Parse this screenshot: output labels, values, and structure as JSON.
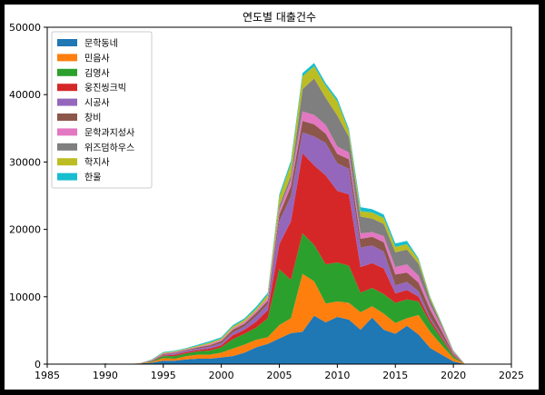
{
  "chart_data": {
    "type": "area",
    "title": "연도별 대출건수",
    "xlabel": "",
    "ylabel": "",
    "xlim": [
      1985,
      2025
    ],
    "ylim": [
      0,
      50000
    ],
    "xticks": [
      1985,
      1990,
      1995,
      2000,
      2005,
      2010,
      2015,
      2020,
      2025
    ],
    "yticks": [
      0,
      10000,
      20000,
      30000,
      40000,
      50000
    ],
    "legend_position": "top-left",
    "grid": false,
    "x": [
      1988,
      1989,
      1990,
      1991,
      1992,
      1993,
      1994,
      1995,
      1996,
      1997,
      1998,
      1999,
      2000,
      2001,
      2002,
      2003,
      2004,
      2005,
      2006,
      2007,
      2008,
      2009,
      2010,
      2011,
      2012,
      2013,
      2014,
      2015,
      2016,
      2017,
      2018,
      2019,
      2020,
      2021
    ],
    "series": [
      {
        "name": "문학동네",
        "color": "#1f77b4",
        "values": [
          0,
          0,
          100,
          0,
          0,
          100,
          200,
          500,
          500,
          700,
          800,
          800,
          1000,
          1200,
          1700,
          2500,
          3000,
          3800,
          4600,
          4800,
          7200,
          6200,
          7000,
          6600,
          5100,
          6900,
          5100,
          4500,
          5700,
          4400,
          2400,
          1400,
          400,
          0
        ]
      },
      {
        "name": "민음사",
        "color": "#ff7f0e",
        "values": [
          0,
          0,
          0,
          0,
          0,
          50,
          100,
          400,
          300,
          500,
          600,
          600,
          700,
          1100,
          1200,
          1100,
          1000,
          2000,
          2200,
          8600,
          5100,
          2800,
          2300,
          2500,
          2600,
          1700,
          2400,
          1600,
          1100,
          2900,
          2400,
          1400,
          500,
          0
        ]
      },
      {
        "name": "김영사",
        "color": "#2ca02c",
        "values": [
          0,
          0,
          0,
          0,
          0,
          0,
          100,
          300,
          400,
          400,
          500,
          600,
          800,
          1400,
          1600,
          1800,
          2800,
          8300,
          5700,
          6000,
          5400,
          5800,
          5800,
          5500,
          2900,
          2700,
          2900,
          3000,
          2800,
          2000,
          1400,
          900,
          300,
          0
        ]
      },
      {
        "name": "웅진씽크빅",
        "color": "#d62728",
        "values": [
          0,
          0,
          0,
          0,
          0,
          0,
          50,
          100,
          200,
          200,
          200,
          300,
          300,
          600,
          600,
          900,
          1200,
          3700,
          8700,
          11900,
          11800,
          13200,
          10600,
          10600,
          3800,
          3700,
          3800,
          1400,
          1400,
          700,
          400,
          300,
          100,
          0
        ]
      },
      {
        "name": "시공사",
        "color": "#9467bd",
        "values": [
          0,
          0,
          0,
          0,
          0,
          0,
          50,
          100,
          200,
          200,
          200,
          300,
          300,
          400,
          500,
          800,
          900,
          3400,
          3700,
          3100,
          4300,
          4800,
          4100,
          3800,
          2900,
          2600,
          2500,
          1200,
          1200,
          800,
          300,
          200,
          100,
          0
        ]
      },
      {
        "name": "창비",
        "color": "#8c564b",
        "values": [
          0,
          0,
          0,
          0,
          0,
          0,
          50,
          100,
          100,
          100,
          200,
          200,
          300,
          400,
          400,
          500,
          500,
          1000,
          1500,
          1700,
          1800,
          1400,
          1400,
          1400,
          1300,
          1300,
          1400,
          1600,
          1400,
          1300,
          1200,
          700,
          200,
          0
        ]
      },
      {
        "name": "문학과지성사",
        "color": "#e377c2",
        "values": [
          0,
          0,
          0,
          0,
          0,
          0,
          50,
          100,
          100,
          100,
          100,
          200,
          200,
          200,
          300,
          300,
          400,
          700,
          900,
          1400,
          1400,
          1300,
          1100,
          1000,
          800,
          700,
          900,
          1100,
          1200,
          1000,
          700,
          600,
          200,
          0
        ]
      },
      {
        "name": "위즈덤하우스",
        "color": "#7f7f7f",
        "values": [
          0,
          0,
          0,
          0,
          0,
          0,
          0,
          0,
          0,
          0,
          0,
          0,
          0,
          0,
          0,
          0,
          0,
          600,
          700,
          3300,
          5400,
          4000,
          4600,
          2300,
          2500,
          2000,
          1800,
          2200,
          2200,
          1800,
          800,
          300,
          100,
          0
        ]
      },
      {
        "name": "학지사",
        "color": "#bcbd22",
        "values": [
          0,
          0,
          0,
          0,
          0,
          0,
          50,
          100,
          100,
          100,
          150,
          200,
          200,
          300,
          300,
          300,
          500,
          1300,
          1700,
          1900,
          1800,
          1800,
          2100,
          800,
          800,
          900,
          900,
          800,
          800,
          600,
          300,
          200,
          100,
          0
        ]
      },
      {
        "name": "한울",
        "color": "#17becf",
        "values": [
          0,
          0,
          0,
          0,
          0,
          0,
          50,
          100,
          100,
          100,
          150,
          200,
          200,
          200,
          200,
          300,
          300,
          400,
          500,
          500,
          500,
          400,
          400,
          400,
          600,
          500,
          500,
          500,
          500,
          200,
          100,
          100,
          50,
          0
        ]
      }
    ]
  }
}
